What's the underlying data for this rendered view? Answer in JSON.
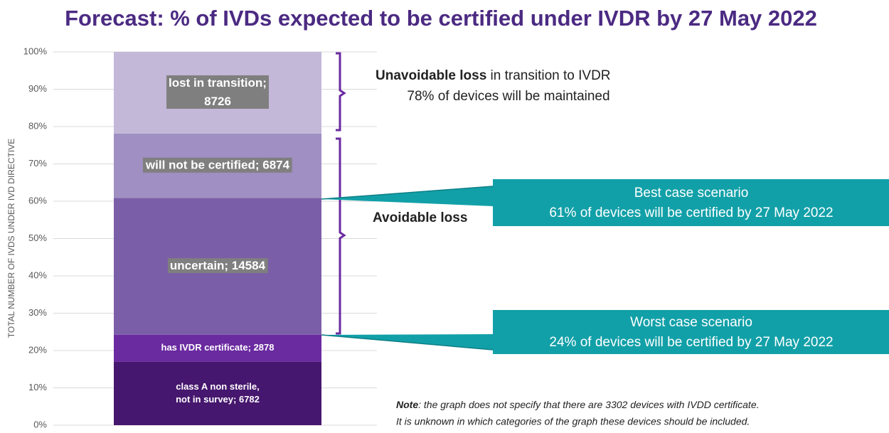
{
  "chart_data": {
    "type": "stacked100",
    "title": "Forecast: % of IVDs expected to be certified under IVDR by 27 May 2022",
    "y_label": "TOTAL NUMBER OF IVDS UNDER IVD DIRECTIVE",
    "ylim": [
      0,
      100
    ],
    "yticks": [
      {
        "value": 0,
        "label": "0%"
      },
      {
        "value": 10,
        "label": "10%"
      },
      {
        "value": 20,
        "label": "20%"
      },
      {
        "value": 30,
        "label": "30%"
      },
      {
        "value": 40,
        "label": "40%"
      },
      {
        "value": 50,
        "label": "50%"
      },
      {
        "value": 60,
        "label": "60%"
      },
      {
        "value": 70,
        "label": "70%"
      },
      {
        "value": 80,
        "label": "80%"
      },
      {
        "value": 90,
        "label": "90%"
      },
      {
        "value": 100,
        "label": "100%"
      }
    ],
    "grid": true,
    "segments": [
      {
        "label": [
          "class A non sterile,",
          "not in survey; 6782"
        ],
        "value": 6782,
        "color": "#46176e",
        "label_boxed": false
      },
      {
        "label": [
          "has IVDR certificate; 2878"
        ],
        "value": 2878,
        "color": "#6a2aa0",
        "label_boxed": false
      },
      {
        "label": [
          "uncertain; 14584"
        ],
        "value": 14584,
        "color": "#7b5ea8",
        "label_boxed": true
      },
      {
        "label": [
          "will not be certified; 6874"
        ],
        "value": 6874,
        "color": "#a08fc2",
        "label_boxed": true
      },
      {
        "label": [
          "lost in transition;",
          "8726"
        ],
        "value": 8726,
        "color": "#c3b8d8",
        "label_boxed": true
      }
    ],
    "annotations": {
      "unavoidable_bold": "Unavoidable loss",
      "unavoidable_rest": " in transition to IVDR",
      "maintained": "78% of devices will be maintained",
      "avoidable": "Avoidable loss",
      "best_title": "Best case scenario",
      "best_text": "61% of devices will be certified by 27 May 2022",
      "worst_title": "Worst case scenario",
      "worst_text": "24% of devices will be certified by 27 May 2022",
      "note_bold": "Note",
      "note_line1": ": the graph does not specify that there are 3302 devices with IVDD certificate.",
      "note_line2": "It is unknown in which categories of the graph these devices should be included."
    }
  }
}
